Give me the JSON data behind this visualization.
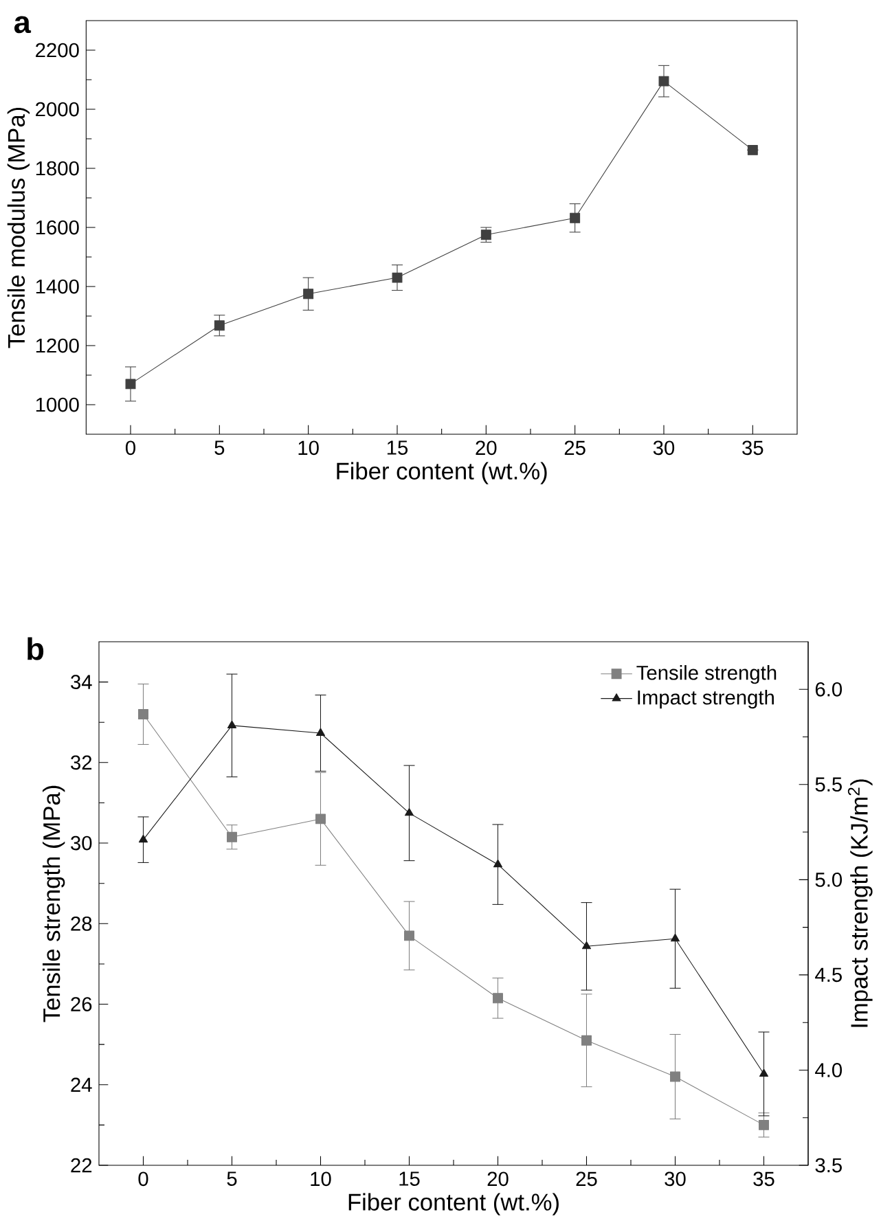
{
  "chart_data": [
    {
      "type": "line",
      "title": "a",
      "xlabel": "Fiber content (wt.%)",
      "ylabel": "Tensile modulus (MPa)",
      "x": [
        0,
        5,
        10,
        15,
        20,
        25,
        30,
        35
      ],
      "series": [
        {
          "color": "#404040",
          "marker": "square",
          "values": [
            1070,
            1268,
            1375,
            1430,
            1575,
            1632,
            2095,
            1862
          ],
          "errors": [
            58,
            35,
            55,
            43,
            25,
            48,
            53,
            null
          ]
        }
      ],
      "xlim": [
        -2.5,
        37.5
      ],
      "xticks": [
        0,
        5,
        10,
        15,
        20,
        25,
        30,
        35
      ],
      "ylim": [
        900,
        2300
      ],
      "yticks": [
        1000,
        1200,
        1400,
        1600,
        1800,
        2000,
        2200
      ]
    },
    {
      "type": "line",
      "title": "b",
      "xlabel": "Fiber content (wt.%)",
      "ylabel": "Tensile strength (MPa)",
      "y2label": "Impact strength (KJ/m$^{2}$)",
      "x": [
        0,
        5,
        10,
        15,
        20,
        25,
        30,
        35
      ],
      "series": [
        {
          "name": "Tensile strength",
          "color": "#808080",
          "marker": "square",
          "values": [
            33.2,
            30.15,
            30.6,
            27.7,
            26.15,
            25.1,
            24.2,
            23.0
          ],
          "errors": [
            0.75,
            0.3,
            1.15,
            0.85,
            0.5,
            1.15,
            1.05,
            0.3
          ]
        },
        {
          "name": "Impact strength",
          "color": "#1a1a1a",
          "marker": "triangle",
          "axis": "y2",
          "values": [
            5.21,
            5.81,
            5.77,
            5.35,
            5.08,
            4.65,
            4.69,
            3.98
          ],
          "errors": [
            0.12,
            0.27,
            0.2,
            0.25,
            0.21,
            0.23,
            0.26,
            0.22
          ]
        }
      ],
      "xlim": [
        -2.5,
        37.5
      ],
      "xticks": [
        0,
        5,
        10,
        15,
        20,
        25,
        30,
        35
      ],
      "ylim": [
        22,
        35
      ],
      "yticks": [
        22,
        24,
        26,
        28,
        30,
        32,
        34
      ],
      "y2lim": [
        3.5,
        6.25
      ],
      "y2ticks": [
        3.5,
        {
          "value": 4,
          "label": "4.0"
        },
        4.5,
        {
          "value": 5,
          "label": "5.0"
        },
        5.5,
        {
          "value": 6,
          "label": "6.0"
        }
      ],
      "legend": "top right"
    }
  ]
}
